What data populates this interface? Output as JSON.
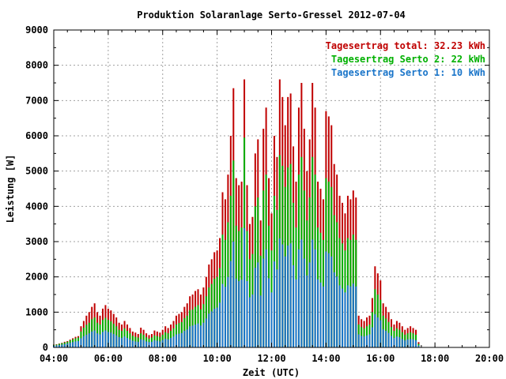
{
  "chart_data": {
    "type": "bar",
    "title": "Produktion Solaranlage Serto-Gressel 2012-07-04",
    "xlabel": "Zeit (UTC)",
    "ylabel": "Leistung [W]",
    "x_tick_labels": [
      "04:00",
      "06:00",
      "08:00",
      "10:00",
      "12:00",
      "14:00",
      "16:00",
      "18:00",
      "20:00"
    ],
    "y_tick_labels": [
      "0",
      "1000",
      "2000",
      "3000",
      "4000",
      "5000",
      "6000",
      "7000",
      "8000",
      "9000"
    ],
    "xlim": [
      4,
      20
    ],
    "ylim": [
      0,
      9000
    ],
    "grid": true,
    "legend_position": "top-right",
    "legend": [
      {
        "text": "Tagesertrag total: 32.23 kWh",
        "color": "#c00000"
      },
      {
        "text": "Tagesertrag Serto 2: 22 kWh",
        "color": "#00b000"
      },
      {
        "text": "Tagesertrag Serto 1: 10 kWh",
        "color": "#1a75c9"
      }
    ],
    "series": [
      {
        "name": "Tagesertrag total",
        "color": "#c00000",
        "x": [
          4.0,
          4.1,
          4.2,
          4.3,
          4.4,
          4.5,
          4.6,
          4.7,
          4.8,
          4.9,
          5.0,
          5.1,
          5.2,
          5.3,
          5.4,
          5.5,
          5.6,
          5.7,
          5.8,
          5.9,
          6.0,
          6.1,
          6.2,
          6.3,
          6.4,
          6.5,
          6.6,
          6.7,
          6.8,
          6.9,
          7.0,
          7.1,
          7.2,
          7.3,
          7.4,
          7.5,
          7.6,
          7.7,
          7.8,
          7.9,
          8.0,
          8.1,
          8.2,
          8.3,
          8.4,
          8.5,
          8.6,
          8.7,
          8.8,
          8.9,
          9.0,
          9.1,
          9.2,
          9.3,
          9.4,
          9.5,
          9.6,
          9.7,
          9.8,
          9.9,
          10.0,
          10.1,
          10.2,
          10.3,
          10.4,
          10.5,
          10.6,
          10.7,
          10.8,
          10.9,
          11.0,
          11.1,
          11.2,
          11.3,
          11.4,
          11.5,
          11.6,
          11.7,
          11.8,
          11.9,
          12.0,
          12.1,
          12.2,
          12.3,
          12.4,
          12.5,
          12.6,
          12.7,
          12.8,
          12.9,
          13.0,
          13.1,
          13.2,
          13.3,
          13.4,
          13.5,
          13.6,
          13.7,
          13.8,
          13.9,
          14.0,
          14.1,
          14.2,
          14.3,
          14.4,
          14.5,
          14.6,
          14.7,
          14.8,
          14.9,
          15.0,
          15.1,
          15.2,
          15.3,
          15.4,
          15.5,
          15.6,
          15.7,
          15.8,
          15.9,
          16.0,
          16.1,
          16.2,
          16.3,
          16.4,
          16.5,
          16.6,
          16.7,
          16.8,
          16.9,
          17.0,
          17.1,
          17.2,
          17.3,
          17.4
        ],
        "values": [
          80,
          90,
          110,
          130,
          160,
          180,
          220,
          260,
          300,
          320,
          600,
          750,
          900,
          1000,
          1150,
          1250,
          1000,
          900,
          1100,
          1200,
          1100,
          1050,
          950,
          850,
          700,
          650,
          750,
          650,
          550,
          450,
          420,
          380,
          560,
          500,
          400,
          350,
          380,
          480,
          450,
          420,
          500,
          600,
          550,
          650,
          750,
          900,
          950,
          1000,
          1150,
          1250,
          1450,
          1500,
          1600,
          1650,
          1500,
          1700,
          2000,
          2350,
          2500,
          2700,
          2750,
          3100,
          4400,
          4200,
          4900,
          6000,
          7350,
          4800,
          4600,
          4700,
          7600,
          4600,
          3500,
          3700,
          5500,
          5900,
          3600,
          6200,
          6800,
          4800,
          3800,
          6000,
          5400,
          7600,
          7100,
          6300,
          7100,
          7200,
          5700,
          4700,
          6800,
          7500,
          6200,
          5000,
          5900,
          7500,
          6800,
          4700,
          4500,
          4200,
          6700,
          6550,
          6300,
          5200,
          4900,
          4300,
          4100,
          3800,
          4300,
          4200,
          4450,
          4250,
          900,
          800,
          750,
          850,
          900,
          1400,
          2300,
          2100,
          1900,
          1250,
          1150,
          1000,
          800,
          650,
          750,
          700,
          600,
          500,
          550,
          600,
          550,
          500,
          150
        ]
      },
      {
        "name": "Tagesertrag Serto 2",
        "color": "#00b000",
        "x": [
          4.0,
          4.1,
          4.2,
          4.3,
          4.4,
          4.5,
          4.6,
          4.7,
          4.8,
          4.9,
          5.0,
          5.1,
          5.2,
          5.3,
          5.4,
          5.5,
          5.6,
          5.7,
          5.8,
          5.9,
          6.0,
          6.1,
          6.2,
          6.3,
          6.4,
          6.5,
          6.6,
          6.7,
          6.8,
          6.9,
          7.0,
          7.1,
          7.2,
          7.3,
          7.4,
          7.5,
          7.6,
          7.7,
          7.8,
          7.9,
          8.0,
          8.1,
          8.2,
          8.3,
          8.4,
          8.5,
          8.6,
          8.7,
          8.8,
          8.9,
          9.0,
          9.1,
          9.2,
          9.3,
          9.4,
          9.5,
          9.6,
          9.7,
          9.8,
          9.9,
          10.0,
          10.1,
          10.2,
          10.3,
          10.4,
          10.5,
          10.6,
          10.7,
          10.8,
          10.9,
          11.0,
          11.1,
          11.2,
          11.3,
          11.4,
          11.5,
          11.6,
          11.7,
          11.8,
          11.9,
          12.0,
          12.1,
          12.2,
          12.3,
          12.4,
          12.5,
          12.6,
          12.7,
          12.8,
          12.9,
          13.0,
          13.1,
          13.2,
          13.3,
          13.4,
          13.5,
          13.6,
          13.7,
          13.8,
          13.9,
          14.0,
          14.1,
          14.2,
          14.3,
          14.4,
          14.5,
          14.6,
          14.7,
          14.8,
          14.9,
          15.0,
          15.1,
          15.2,
          15.3,
          15.4,
          15.5,
          15.6,
          15.7,
          15.8,
          15.9,
          16.0,
          16.1,
          16.2,
          16.3,
          16.4,
          16.5,
          16.6,
          16.7,
          16.8,
          16.9,
          17.0,
          17.1,
          17.2,
          17.3,
          17.4
        ],
        "values": [
          70,
          80,
          100,
          120,
          140,
          160,
          200,
          230,
          260,
          280,
          450,
          560,
          640,
          700,
          800,
          850,
          700,
          650,
          780,
          840,
          780,
          740,
          670,
          600,
          500,
          470,
          540,
          470,
          400,
          330,
          300,
          280,
          400,
          360,
          290,
          250,
          280,
          340,
          320,
          300,
          360,
          430,
          400,
          470,
          540,
          650,
          690,
          720,
          830,
          900,
          1050,
          1080,
          1150,
          1200,
          1080,
          1230,
          1450,
          1700,
          1800,
          1950,
          2000,
          2250,
          3200,
          3050,
          3550,
          4300,
          5300,
          3450,
          3300,
          3400,
          5950,
          3300,
          2500,
          2650,
          4000,
          4250,
          2600,
          4450,
          4900,
          3450,
          2750,
          4300,
          3900,
          5450,
          5150,
          4550,
          5100,
          5200,
          4100,
          3400,
          4900,
          5400,
          4450,
          3600,
          4250,
          5400,
          4900,
          3400,
          3250,
          3050,
          4800,
          4700,
          4550,
          3750,
          3550,
          3100,
          2950,
          2750,
          3100,
          3050,
          3200,
          3050,
          650,
          580,
          540,
          600,
          650,
          1000,
          1650,
          1500,
          1350,
          900,
          820,
          720,
          580,
          470,
          540,
          500,
          430,
          360,
          400,
          430,
          400,
          360,
          100
        ]
      },
      {
        "name": "Tagesertrag Serto 1",
        "color": "#1a75c9",
        "x": [
          4.0,
          4.1,
          4.2,
          4.3,
          4.4,
          4.5,
          4.6,
          4.7,
          4.8,
          4.9,
          5.0,
          5.1,
          5.2,
          5.3,
          5.4,
          5.5,
          5.6,
          5.7,
          5.8,
          5.9,
          6.0,
          6.1,
          6.2,
          6.3,
          6.4,
          6.5,
          6.6,
          6.7,
          6.8,
          6.9,
          7.0,
          7.1,
          7.2,
          7.3,
          7.4,
          7.5,
          7.6,
          7.7,
          7.8,
          7.9,
          8.0,
          8.1,
          8.2,
          8.3,
          8.4,
          8.5,
          8.6,
          8.7,
          8.8,
          8.9,
          9.0,
          9.1,
          9.2,
          9.3,
          9.4,
          9.5,
          9.6,
          9.7,
          9.8,
          9.9,
          10.0,
          10.1,
          10.2,
          10.3,
          10.4,
          10.5,
          10.6,
          10.7,
          10.8,
          10.9,
          11.0,
          11.1,
          11.2,
          11.3,
          11.4,
          11.5,
          11.6,
          11.7,
          11.8,
          11.9,
          12.0,
          12.1,
          12.2,
          12.3,
          12.4,
          12.5,
          12.6,
          12.7,
          12.8,
          12.9,
          13.0,
          13.1,
          13.2,
          13.3,
          13.4,
          13.5,
          13.6,
          13.7,
          13.8,
          13.9,
          14.0,
          14.1,
          14.2,
          14.3,
          14.4,
          14.5,
          14.6,
          14.7,
          14.8,
          14.9,
          15.0,
          15.1,
          15.2,
          15.3,
          15.4,
          15.5,
          15.6,
          15.7,
          15.8,
          15.9,
          16.0,
          16.1,
          16.2,
          16.3,
          16.4,
          16.5,
          16.6,
          16.7,
          16.8,
          16.9,
          17.0,
          17.1,
          17.2,
          17.3,
          17.4
        ],
        "values": [
          50,
          55,
          65,
          80,
          95,
          110,
          130,
          150,
          170,
          180,
          260,
          320,
          360,
          400,
          450,
          480,
          400,
          370,
          440,
          480,
          440,
          420,
          380,
          340,
          290,
          270,
          310,
          270,
          230,
          190,
          170,
          160,
          230,
          210,
          170,
          150,
          160,
          200,
          190,
          170,
          210,
          250,
          230,
          270,
          310,
          370,
          390,
          410,
          470,
          510,
          600,
          620,
          650,
          680,
          620,
          700,
          820,
          960,
          1020,
          1100,
          1130,
          1270,
          1800,
          1720,
          2000,
          2450,
          3000,
          1950,
          1880,
          1920,
          3380,
          1880,
          1420,
          1500,
          2260,
          2410,
          1470,
          2520,
          2780,
          1960,
          1560,
          2440,
          2210,
          3090,
          2920,
          2580,
          2890,
          2950,
          2330,
          1930,
          2780,
          3060,
          2520,
          2040,
          2410,
          3060,
          2780,
          1930,
          1840,
          1730,
          2720,
          2670,
          2580,
          2130,
          2010,
          1760,
          1670,
          1560,
          1760,
          1730,
          1810,
          1730,
          370,
          330,
          310,
          340,
          370,
          570,
          940,
          850,
          770,
          510,
          470,
          410,
          330,
          270,
          310,
          290,
          240,
          200,
          230,
          240,
          230,
          200,
          55
        ]
      }
    ]
  }
}
